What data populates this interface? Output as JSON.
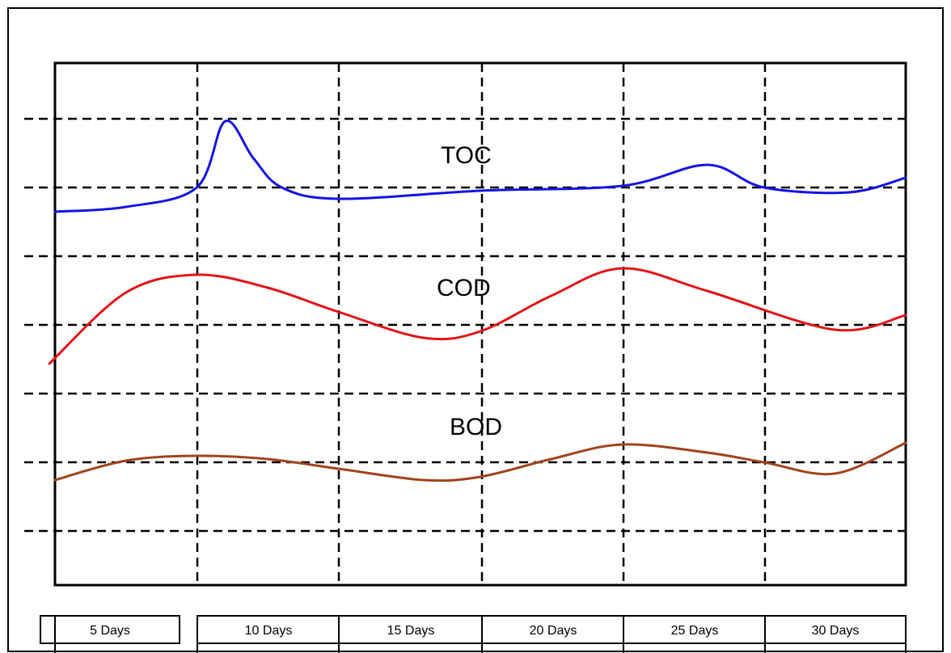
{
  "chart_data": {
    "type": "line",
    "title": "",
    "xlabel": "",
    "ylabel": "",
    "grid": true,
    "x_categories": [
      "5 Days",
      "10 Days",
      "15 Days",
      "20 Days",
      "25 Days",
      "30 Days"
    ],
    "x_range": [
      5,
      35
    ],
    "series": [
      {
        "name": "TOC",
        "color": "#1414e6",
        "points": [
          [
            5.0,
            0.75
          ],
          [
            7.5,
            0.6
          ],
          [
            10.0,
            0.0
          ],
          [
            11.0,
            -2.05
          ],
          [
            12.0,
            -0.9
          ],
          [
            13.0,
            0.0
          ],
          [
            15.0,
            0.35
          ],
          [
            20.0,
            0.1
          ],
          [
            25.0,
            -0.05
          ],
          [
            28.0,
            -0.7
          ],
          [
            30.0,
            0.0
          ],
          [
            33.0,
            0.15
          ],
          [
            35.0,
            -0.3
          ]
        ]
      },
      {
        "name": "COD",
        "color": "#e41414",
        "points": [
          [
            4.8,
            1.2
          ],
          [
            7.5,
            -1.0
          ],
          [
            10.0,
            -1.55
          ],
          [
            12.5,
            -1.15
          ],
          [
            15.0,
            -0.4
          ],
          [
            18.0,
            0.4
          ],
          [
            20.0,
            0.2
          ],
          [
            22.5,
            -0.9
          ],
          [
            25.0,
            -1.75
          ],
          [
            28.0,
            -1.05
          ],
          [
            32.5,
            0.15
          ],
          [
            35.0,
            -0.3
          ]
        ]
      },
      {
        "name": "BOD",
        "color": "#a0441a",
        "points": [
          [
            5.0,
            0.55
          ],
          [
            7.5,
            -0.05
          ],
          [
            10.0,
            -0.2
          ],
          [
            12.5,
            -0.1
          ],
          [
            15.0,
            0.2
          ],
          [
            18.0,
            0.55
          ],
          [
            20.0,
            0.45
          ],
          [
            22.5,
            -0.1
          ],
          [
            25.0,
            -0.55
          ],
          [
            28.0,
            -0.3
          ],
          [
            30.0,
            0.0
          ],
          [
            32.5,
            0.35
          ],
          [
            35.0,
            -0.6
          ]
        ]
      }
    ]
  }
}
